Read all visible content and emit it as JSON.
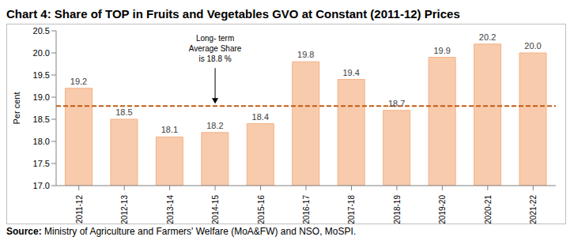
{
  "chart_data": {
    "type": "bar",
    "title": "Chart 4: Share of TOP in Fruits and Vegetables GVO at Constant (2011-12) Prices",
    "y_label": "Per cent",
    "categories": [
      "2011-12",
      "2012-13",
      "2013-14",
      "2014-15",
      "2015-16",
      "2016-17",
      "2017-18",
      "2018-19",
      "2019-20",
      "2020-21",
      "2021-22"
    ],
    "values": [
      19.2,
      18.5,
      18.1,
      18.2,
      18.4,
      19.8,
      19.4,
      18.7,
      19.9,
      20.2,
      20.0
    ],
    "value_labels": [
      "19.2",
      "18.5",
      "18.1",
      "18.2",
      "18.4",
      "19.8",
      "19.4",
      "18.7",
      "19.9",
      "20.2",
      "20.0"
    ],
    "color": "#f8cbad",
    "data_labels": true,
    "grid": false,
    "ylim": [
      17,
      20.5
    ],
    "yticks": [
      {
        "value": 17,
        "label": "17.0"
      },
      {
        "value": 17.5,
        "label": "17.5"
      },
      {
        "value": 18,
        "label": "18.0"
      },
      {
        "value": 18.5,
        "label": "18.5"
      },
      {
        "value": 19,
        "label": "19.0"
      },
      {
        "value": 19.5,
        "label": "19.5"
      },
      {
        "value": 20,
        "label": "20.0"
      },
      {
        "value": 20.5,
        "label": "20.5"
      }
    ],
    "average": 18.8,
    "average_color": "#c55a11",
    "average_line_style": "dashed",
    "annotation": [
      "Long- term",
      "Average Share",
      "is 18.8 %"
    ],
    "source_label": "Source:",
    "source": "Ministry of Agriculture and Farmers' Welfare (MoA&FW) and NSO, MoSPI."
  }
}
